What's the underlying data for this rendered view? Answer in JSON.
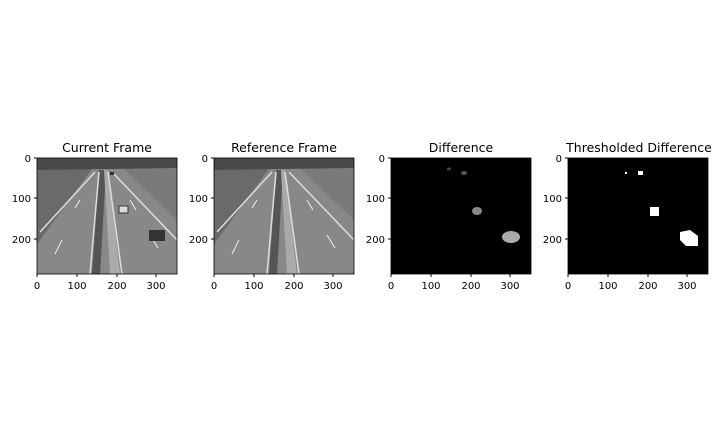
{
  "chart_data": [
    {
      "type": "image",
      "title": "Current Frame",
      "image_kind": "grayscale highway photo",
      "xlim": [
        0,
        352
      ],
      "ylim": [
        288,
        0
      ],
      "xticks": [
        0,
        100,
        200,
        300
      ],
      "yticks": [
        0,
        100,
        200
      ],
      "xtick_labels": [
        "0",
        "100",
        "200",
        "300"
      ],
      "ytick_labels": [
        "0",
        "100",
        "200"
      ],
      "cars": [
        {
          "x": 215,
          "y": 128
        },
        {
          "x": 300,
          "y": 198
        },
        {
          "x": 185,
          "y": 40
        }
      ]
    },
    {
      "type": "image",
      "title": "Reference Frame",
      "image_kind": "grayscale highway photo (empty road)",
      "xlim": [
        0,
        352
      ],
      "ylim": [
        288,
        0
      ],
      "xticks": [
        0,
        100,
        200,
        300
      ],
      "yticks": [
        0,
        100,
        200
      ],
      "xtick_labels": [
        "0",
        "100",
        "200",
        "300"
      ],
      "ytick_labels": [
        "0",
        "100",
        "200"
      ],
      "cars": []
    },
    {
      "type": "image",
      "title": "Difference",
      "image_kind": "dark difference map",
      "xlim": [
        0,
        352
      ],
      "ylim": [
        288,
        0
      ],
      "xticks": [
        0,
        100,
        200,
        300
      ],
      "yticks": [
        0,
        100,
        200
      ],
      "xtick_labels": [
        "0",
        "100",
        "200",
        "300"
      ],
      "ytick_labels": [
        "0",
        "100",
        "200"
      ],
      "blobs": [
        {
          "x": 215,
          "y": 128
        },
        {
          "x": 300,
          "y": 198
        },
        {
          "x": 180,
          "y": 38
        },
        {
          "x": 150,
          "y": 30
        }
      ]
    },
    {
      "type": "image",
      "title": "Thresholded Difference",
      "image_kind": "binary mask",
      "xlim": [
        0,
        352
      ],
      "ylim": [
        288,
        0
      ],
      "xticks": [
        0,
        100,
        200,
        300
      ],
      "yticks": [
        0,
        100,
        200
      ],
      "xtick_labels": [
        "0",
        "100",
        "200",
        "300"
      ],
      "ytick_labels": [
        "0",
        "100",
        "200"
      ],
      "blobs": [
        {
          "x": 215,
          "y": 128
        },
        {
          "x": 300,
          "y": 198
        },
        {
          "x": 180,
          "y": 38
        },
        {
          "x": 150,
          "y": 30
        }
      ]
    }
  ],
  "colors": {
    "road": "#8a8a8a",
    "grass": "#555555",
    "lane_marking": "#dcdcdc",
    "difference_bg": "#000000",
    "mask_fg": "#ffffff"
  }
}
